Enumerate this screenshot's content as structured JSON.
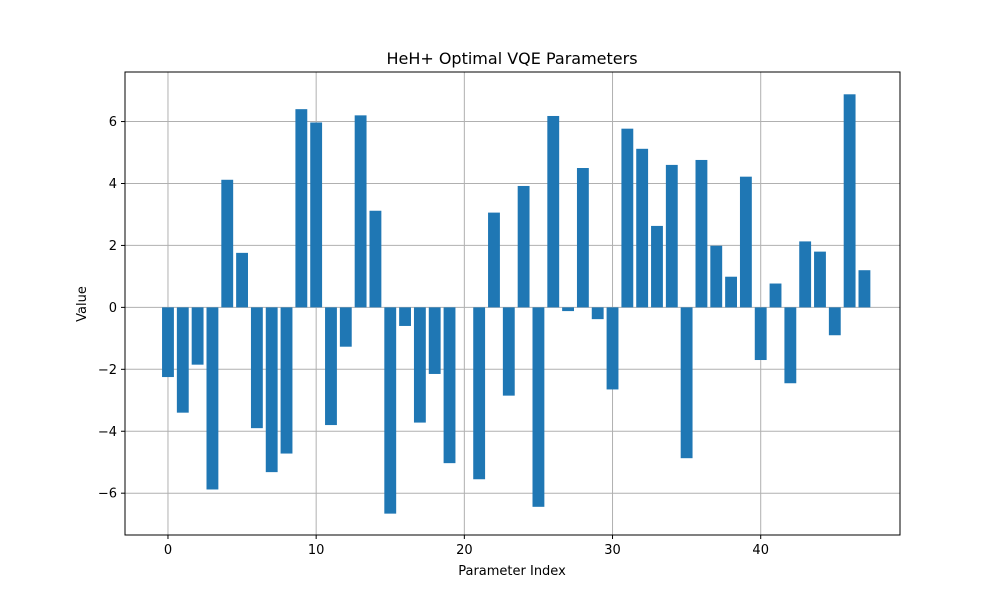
{
  "chart_data": {
    "type": "bar",
    "title": "HeH+ Optimal VQE Parameters",
    "xlabel": "Parameter Index",
    "ylabel": "Value",
    "xlim": [
      -2.9,
      49.4
    ],
    "ylim": [
      -7.35,
      7.6
    ],
    "xticks": [
      0,
      10,
      20,
      30,
      40
    ],
    "yticks": [
      -6,
      -4,
      -2,
      0,
      2,
      4,
      6
    ],
    "grid": true,
    "bar_color": "#1f77b4",
    "x": [
      0,
      1,
      2,
      3,
      4,
      5,
      6,
      7,
      8,
      9,
      10,
      11,
      12,
      13,
      14,
      15,
      16,
      17,
      18,
      19,
      20,
      21,
      22,
      23,
      24,
      25,
      26,
      27,
      28,
      29,
      30,
      31,
      32,
      33,
      34,
      35,
      36,
      37,
      38,
      39,
      40,
      41,
      42,
      43,
      44,
      45,
      46,
      47
    ],
    "values": [
      -2.25,
      -3.4,
      -1.85,
      -5.88,
      4.12,
      1.76,
      -3.9,
      -5.32,
      -4.72,
      6.4,
      5.97,
      -3.8,
      -1.27,
      6.2,
      3.12,
      -6.66,
      -0.6,
      -3.72,
      -2.15,
      -5.03,
      0.0,
      -5.55,
      3.06,
      -2.85,
      3.92,
      -6.44,
      6.18,
      -0.12,
      4.5,
      -0.38,
      -2.65,
      5.77,
      5.12,
      2.63,
      4.6,
      -4.87,
      4.76,
      1.99,
      0.99,
      4.22,
      -1.7,
      0.77,
      -2.45,
      2.13,
      1.8,
      -0.9,
      6.88,
      1.2
    ]
  }
}
